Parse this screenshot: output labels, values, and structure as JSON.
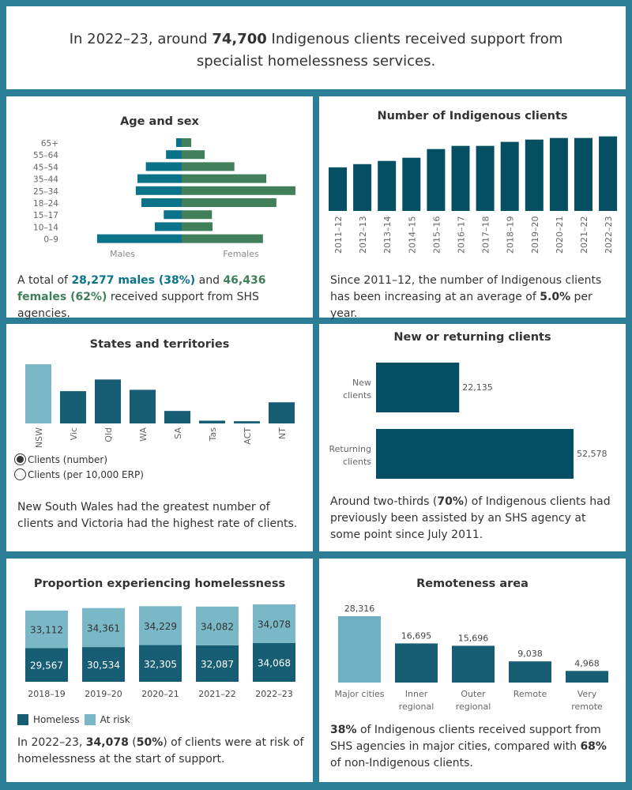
{
  "headline": [
    {
      "text": "In 2022–23, around "
    },
    {
      "text": "74,700",
      "bold": true
    },
    {
      "text": " Indigenous clients received support from specialist homelessness services."
    }
  ],
  "colors": {
    "male": "#0a7289",
    "female": "#417f5a",
    "clients": "#054f63",
    "dark": "#175e74",
    "light": "#7ab8c8",
    "major": "#6fb0c1",
    "text": "#333333",
    "axis": "#666666"
  },
  "age_sex": {
    "title": "Age and sex",
    "summary": [
      {
        "text": "A total of "
      },
      {
        "text": "28,277 males (38%)",
        "bold": true,
        "color": "male"
      },
      {
        "text": " and "
      },
      {
        "text": "46,436  females (62%)",
        "bold": true,
        "color": "female"
      },
      {
        "text": " received support from SHS agencies."
      }
    ]
  },
  "clients": {
    "title": "Number of Indigenous clients",
    "summary": [
      {
        "text": "Since 2011–12, the number of Indigenous clients has been increasing at an average of "
      },
      {
        "text": " 5.0%",
        "bold": true
      },
      {
        "text": " per year."
      }
    ]
  },
  "states": {
    "title": "States and territories",
    "radio_options": [
      {
        "label": "Clients (number)",
        "selected": true
      },
      {
        "label": "Clients (per 10,000 ERP)",
        "selected": false
      }
    ],
    "summary": [
      {
        "text": "New South Wales had the greatest number of clients and Victoria had the highest rate of clients."
      }
    ]
  },
  "new_returning": {
    "title": "New or returning clients",
    "summary": [
      {
        "text": "Around two-thirds ("
      },
      {
        "text": "70%",
        "bold": true
      },
      {
        "text": ") of Indigenous clients  had previously been assisted by an SHS agency at some point since July 2011."
      }
    ]
  },
  "homelessness": {
    "title": "Proportion experiencing homelessness",
    "summary": [
      {
        "text": "In 2022–23, "
      },
      {
        "text": "34,078",
        "bold": true
      },
      {
        "text": " ("
      },
      {
        "text": "50%",
        "bold": true
      },
      {
        "text": ") of clients were at risk of homelessness at the start of support."
      }
    ]
  },
  "remoteness": {
    "title": "Remoteness area",
    "summary": [
      {
        "text": "38%",
        "bold": true
      },
      {
        "text": " of Indigenous clients received support from SHS agencies in major cities, compared with "
      },
      {
        "text": "68%",
        "bold": true
      },
      {
        "text": " of non-Indigenous clients."
      }
    ]
  },
  "chart_data": [
    {
      "id": "age_sex",
      "type": "bar",
      "orientation": "horizontal-diverging",
      "categories": [
        "65+",
        "55–64",
        "45–54",
        "35–44",
        "25–34",
        "18–24",
        "15–17",
        "10–14",
        "0–9"
      ],
      "series": [
        {
          "name": "Males",
          "values": [
            500,
            1400,
            3200,
            3950,
            4100,
            3600,
            1600,
            2400,
            7550
          ]
        },
        {
          "name": "Females",
          "values": [
            850,
            2050,
            4700,
            7550,
            10150,
            8450,
            2700,
            2750,
            7250
          ]
        }
      ]
    },
    {
      "id": "clients",
      "type": "bar",
      "categories": [
        "2011–12",
        "2012–13",
        "2013–14",
        "2014–15",
        "2015–16",
        "2016–17",
        "2017–18",
        "2018–19",
        "2019–20",
        "2020–21",
        "2021–22",
        "2022–23"
      ],
      "values": [
        43700,
        46900,
        50100,
        53300,
        62000,
        65200,
        65200,
        69200,
        71500,
        73100,
        73100,
        74700
      ],
      "ylim": [
        0,
        76000
      ]
    },
    {
      "id": "states",
      "type": "bar",
      "categories": [
        "NSW",
        "Vic",
        "Qld",
        "WA",
        "SA",
        "Tas",
        "ACT",
        "NT"
      ],
      "values": [
        21300,
        11600,
        15800,
        12100,
        4500,
        1000,
        800,
        7600
      ],
      "highlight": "NSW",
      "ylim": [
        0,
        21300
      ]
    },
    {
      "id": "new_returning",
      "type": "bar",
      "orientation": "horizontal",
      "categories": [
        "New clients",
        "Returning clients"
      ],
      "values": [
        22135,
        52578
      ],
      "data_labels": [
        "22,135",
        "52,578"
      ]
    },
    {
      "id": "homelessness",
      "type": "bar",
      "stacked": true,
      "categories": [
        "2018–19",
        "2019–20",
        "2020–21",
        "2021–22",
        "2022–23"
      ],
      "series": [
        {
          "name": "Homeless",
          "values": [
            29567,
            30534,
            32305,
            32087,
            34068
          ],
          "labels": [
            "29,567",
            "30,534",
            "32,305",
            "32,087",
            "34,068"
          ]
        },
        {
          "name": "At risk",
          "values": [
            33112,
            34361,
            34229,
            34082,
            34078
          ],
          "labels": [
            "33,112",
            "34,361",
            "34,229",
            "34,082",
            "34,078"
          ]
        }
      ],
      "legend": "bottom-left"
    },
    {
      "id": "remoteness",
      "type": "bar",
      "categories": [
        "Major cities",
        "Inner regional",
        "Outer regional",
        "Remote",
        "Very remote"
      ],
      "values": [
        28316,
        16695,
        15696,
        9038,
        4968
      ],
      "data_labels": [
        "28,316",
        "16,695",
        "15,696",
        "9,038",
        "4,968"
      ],
      "highlight": "Major cities"
    }
  ]
}
